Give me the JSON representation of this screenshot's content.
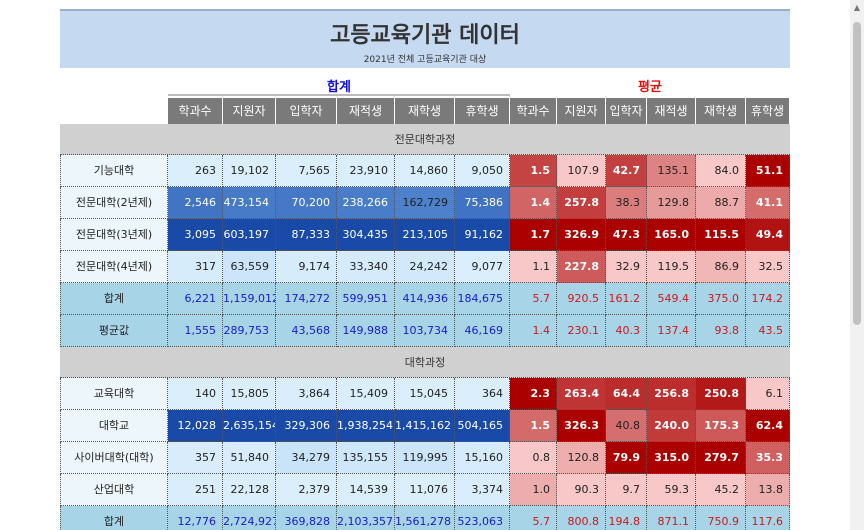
{
  "title": "고등교육기관 데이터",
  "subtitle": "2021년 전체 고등교육기관 대상",
  "groups": {
    "sum": "합계",
    "avg": "평균"
  },
  "columns": [
    "학과수",
    "지원자",
    "입학자",
    "재적생",
    "재학생",
    "휴학생",
    "학과수",
    "지원자",
    "입학자",
    "재적생",
    "재학생",
    "휴학생"
  ],
  "sections": [
    {
      "name": "전문대학과정",
      "rows": [
        {
          "name": "기능대학",
          "values": [
            "263",
            "19,102",
            "7,565",
            "23,910",
            "14,860",
            "9,050"
          ],
          "avgs": [
            "1.5",
            "107.9",
            "42.7",
            "135.1",
            "84.0",
            "51.1"
          ]
        },
        {
          "name": "전문대학(2년제)",
          "values": [
            "2,546",
            "473,154",
            "70,200",
            "238,266",
            "162,729",
            "75,386"
          ],
          "avgs": [
            "1.4",
            "257.8",
            "38.3",
            "129.8",
            "88.7",
            "41.1"
          ]
        },
        {
          "name": "전문대학(3년제)",
          "values": [
            "3,095",
            "603,197",
            "87,333",
            "304,435",
            "213,105",
            "91,162"
          ],
          "avgs": [
            "1.7",
            "326.9",
            "47.3",
            "165.0",
            "115.5",
            "49.4"
          ]
        },
        {
          "name": "전문대학(4년제)",
          "values": [
            "317",
            "63,559",
            "9,174",
            "33,340",
            "24,242",
            "9,077"
          ],
          "avgs": [
            "1.1",
            "227.8",
            "32.9",
            "119.5",
            "86.9",
            "32.5"
          ]
        },
        {
          "name": "합계",
          "kind": "total",
          "values": [
            "6,221",
            "1,159,012",
            "174,272",
            "599,951",
            "414,936",
            "184,675"
          ],
          "avgs": [
            "5.7",
            "920.5",
            "161.2",
            "549.4",
            "375.0",
            "174.2"
          ]
        },
        {
          "name": "평균값",
          "kind": "mean",
          "values": [
            "1,555",
            "289,753",
            "43,568",
            "149,988",
            "103,734",
            "46,169"
          ],
          "avgs": [
            "1.4",
            "230.1",
            "40.3",
            "137.4",
            "93.8",
            "43.5"
          ]
        }
      ]
    },
    {
      "name": "대학과정",
      "rows": [
        {
          "name": "교육대학",
          "values": [
            "140",
            "15,805",
            "3,864",
            "15,409",
            "15,045",
            "364"
          ],
          "avgs": [
            "2.3",
            "263.4",
            "64.4",
            "256.8",
            "250.8",
            "6.1"
          ]
        },
        {
          "name": "대학교",
          "values": [
            "12,028",
            "2,635,154",
            "329,306",
            "1,938,254",
            "1,415,162",
            "504,165"
          ],
          "avgs": [
            "1.5",
            "326.3",
            "40.8",
            "240.0",
            "175.3",
            "62.4"
          ]
        },
        {
          "name": "사이버대학(대학)",
          "values": [
            "357",
            "51,840",
            "34,279",
            "135,155",
            "119,995",
            "15,160"
          ],
          "avgs": [
            "0.8",
            "120.8",
            "79.9",
            "315.0",
            "279.7",
            "35.3"
          ]
        },
        {
          "name": "산업대학",
          "values": [
            "251",
            "22,128",
            "2,379",
            "14,539",
            "11,076",
            "3,374"
          ],
          "avgs": [
            "1.0",
            "90.3",
            "9.7",
            "59.3",
            "45.2",
            "13.8"
          ]
        },
        {
          "name": "합계",
          "kind": "total",
          "values": [
            "12,776",
            "2,724,927",
            "369,828",
            "2,103,357",
            "1,561,278",
            "523,063"
          ],
          "avgs": [
            "5.7",
            "800.8",
            "194.8",
            "871.1",
            "750.9",
            "117.6"
          ]
        }
      ]
    }
  ],
  "colors": {
    "sum_light": "#dbeefc",
    "sum_medium": "#7eb6ee",
    "sum_dark": "#1a4aa8",
    "avg_light": "#f8c8c8",
    "avg_dark": "#aa0000"
  }
}
